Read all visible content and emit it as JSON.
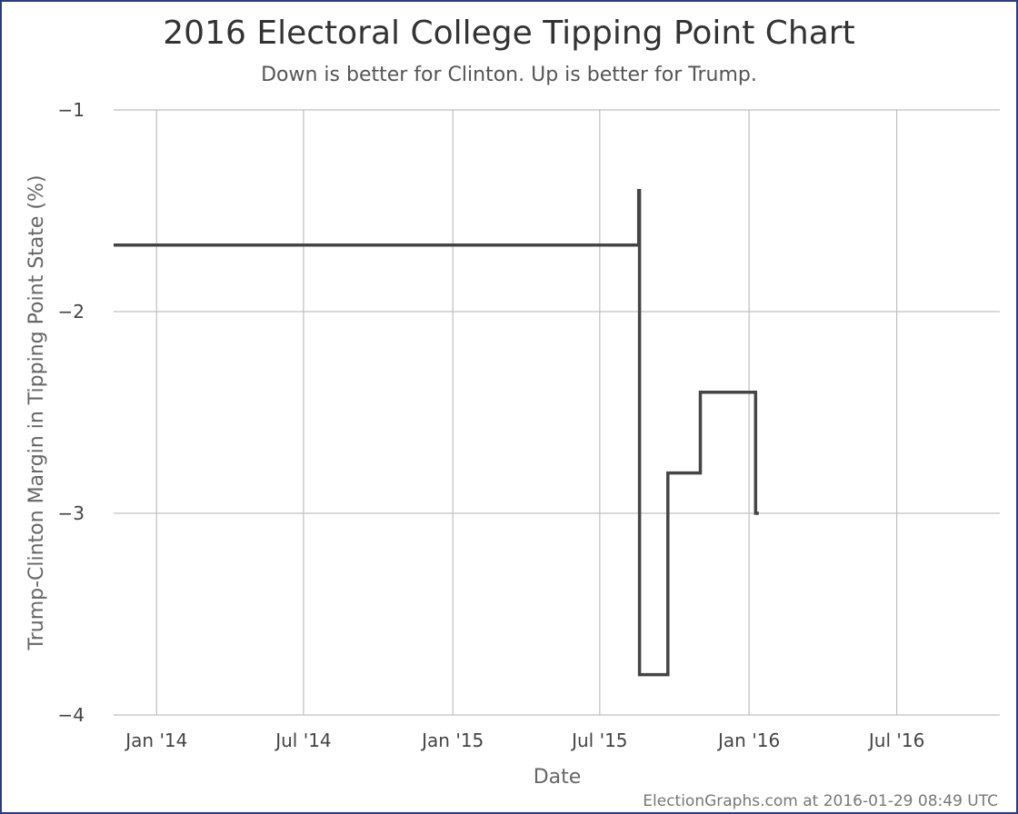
{
  "chart_data": {
    "type": "line",
    "title": "2016 Electoral College Tipping Point Chart",
    "subtitle": "Down is better for Clinton. Up is better for Trump.",
    "xlabel": "Date",
    "ylabel": "Trump-Clinton Margin in Tipping Point State (%)",
    "x_ticks": [
      "Jan '14",
      "Jul '14",
      "Jan '15",
      "Jul '15",
      "Jan '16",
      "Jul '16"
    ],
    "x_tick_dates": [
      "2014-01-01",
      "2014-07-01",
      "2015-01-01",
      "2015-07-01",
      "2016-01-01",
      "2016-07-01"
    ],
    "xlim": [
      "2013-11-09",
      "2016-11-05"
    ],
    "y_ticks": [
      -1,
      -2,
      -3,
      -4
    ],
    "ylim": [
      -4,
      -1
    ],
    "grid": true,
    "line_color": "#454545",
    "series": [
      {
        "step": true,
        "points": [
          {
            "x": "2013-11-09",
            "y": -1.67
          },
          {
            "x": "2015-08-18",
            "y": -1.67
          },
          {
            "x": "2015-08-18",
            "y": -1.4
          },
          {
            "x": "2015-08-19",
            "y": -1.4
          },
          {
            "x": "2015-08-19",
            "y": -3.8
          },
          {
            "x": "2015-09-23",
            "y": -3.8
          },
          {
            "x": "2015-09-23",
            "y": -2.8
          },
          {
            "x": "2015-11-02",
            "y": -2.8
          },
          {
            "x": "2015-11-02",
            "y": -2.4
          },
          {
            "x": "2016-01-09",
            "y": -2.4
          },
          {
            "x": "2016-01-09",
            "y": -3.0
          },
          {
            "x": "2016-01-13",
            "y": -3.0
          }
        ]
      }
    ]
  },
  "credit": "ElectionGraphs.com at 2016-01-29 08:49 UTC"
}
